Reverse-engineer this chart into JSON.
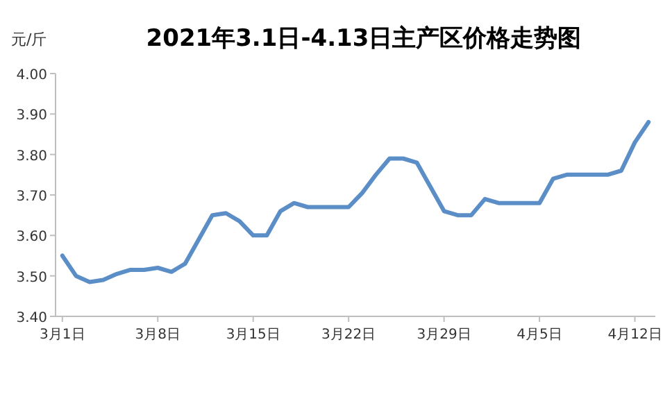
{
  "chart_data": {
    "type": "line",
    "title": "2021年3.1日-4.13日主产区价格走势图",
    "ylabel": "元/斤",
    "categories": [
      "3月1日",
      null,
      null,
      null,
      null,
      null,
      null,
      "3月8日",
      null,
      null,
      null,
      null,
      null,
      null,
      "3月15日",
      null,
      null,
      null,
      null,
      null,
      null,
      "3月22日",
      null,
      null,
      null,
      null,
      null,
      null,
      "3月29日",
      null,
      null,
      null,
      null,
      null,
      null,
      "4月5日",
      null,
      null,
      null,
      null,
      null,
      null,
      "4月12日",
      null
    ],
    "series": [
      {
        "color": "#5b8ec6",
        "values": [
          3.55,
          3.5,
          3.485,
          3.49,
          3.505,
          3.515,
          3.515,
          3.52,
          3.51,
          3.53,
          3.59,
          3.65,
          3.655,
          3.635,
          3.6,
          3.6,
          3.66,
          3.68,
          3.67,
          3.67,
          3.67,
          3.67,
          3.705,
          3.75,
          3.79,
          3.79,
          3.78,
          3.72,
          3.66,
          3.65,
          3.65,
          3.69,
          3.68,
          3.68,
          3.68,
          3.68,
          3.74,
          3.75,
          3.75,
          3.75,
          3.75,
          3.76,
          3.83,
          3.88
        ]
      }
    ],
    "ylim": [
      3.4,
      4.0
    ],
    "yticks": [
      {
        "value": 3.4,
        "label": "3.40"
      },
      {
        "value": 3.5,
        "label": "3.50"
      },
      {
        "value": 3.6,
        "label": "3.60"
      },
      {
        "value": 3.7,
        "label": "3.70"
      },
      {
        "value": 3.8,
        "label": "3.80"
      },
      {
        "value": 3.9,
        "label": "3.90"
      },
      {
        "value": 4.0,
        "label": "4.00"
      }
    ],
    "marker": "none",
    "line_style": "solid"
  }
}
